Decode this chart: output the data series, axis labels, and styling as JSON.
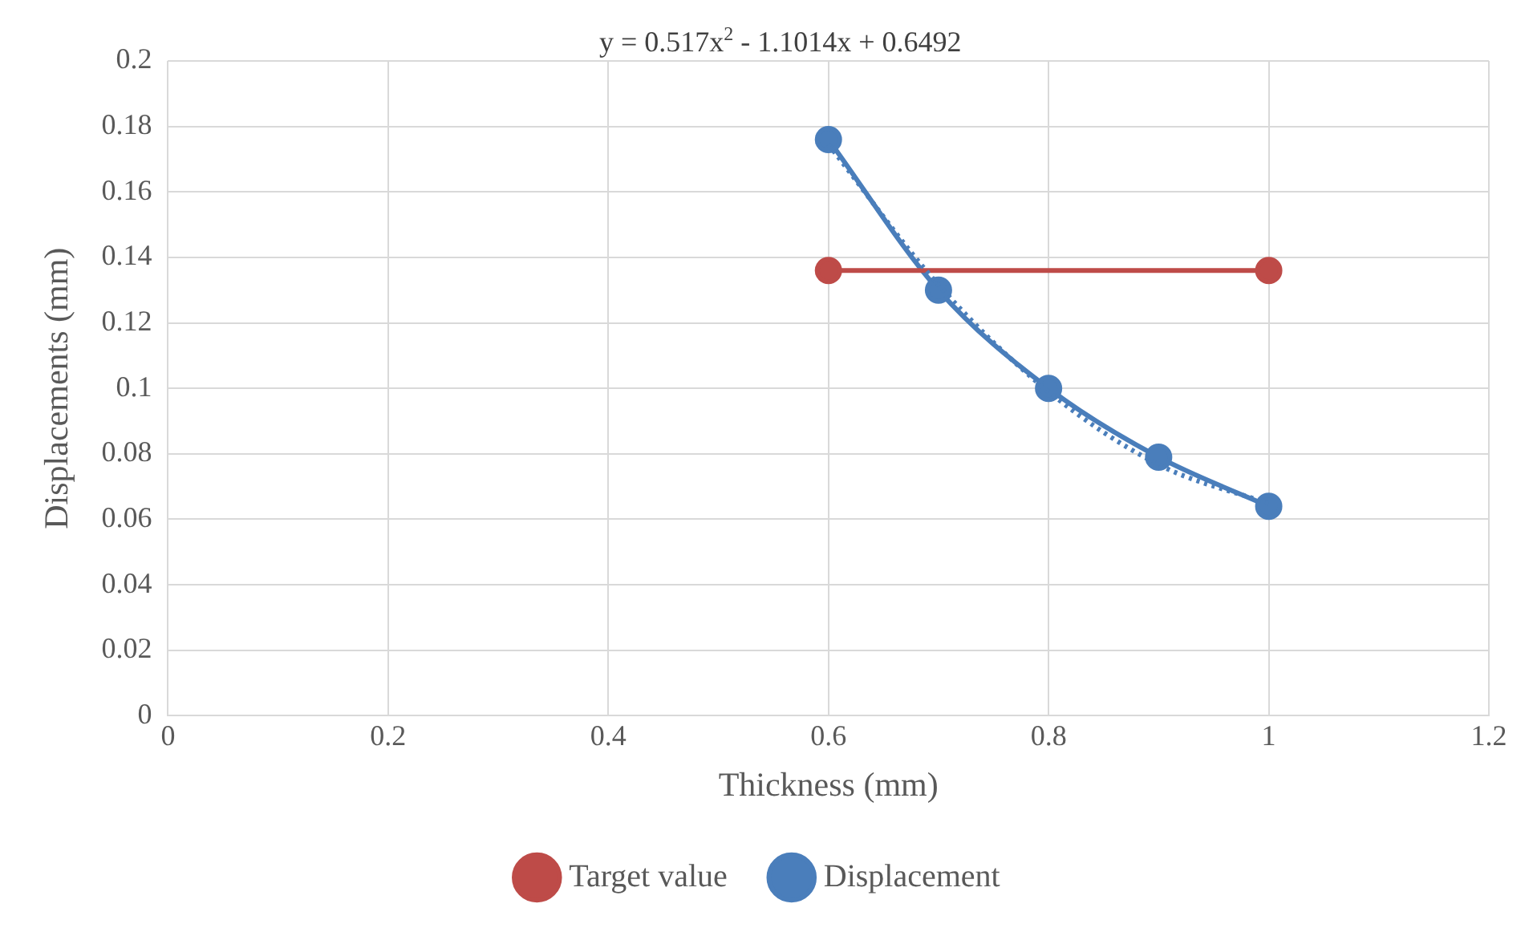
{
  "chart_data": {
    "type": "line",
    "xlabel": "Thickness (mm)",
    "ylabel": "Displacements (mm)",
    "x": [
      0.6,
      0.7,
      0.8,
      0.9,
      1.0
    ],
    "series": [
      {
        "name": "Displacement",
        "color": "#4a7ebb",
        "values": [
          0.176,
          0.13,
          0.1,
          0.079,
          0.064
        ],
        "marker": "circle"
      },
      {
        "name": "Target value",
        "color": "#be4b48",
        "x": [
          0.6,
          1.0
        ],
        "values": [
          0.136,
          0.136
        ],
        "marker": "circle"
      },
      {
        "type": "line",
        "color": "#4a7ebb",
        "x": [
          0.6,
          0.7,
          0.8,
          0.9,
          1.0
        ],
        "values": [
          0.1745,
          0.1316,
          0.099,
          0.0767,
          0.0648
        ],
        "marker": "none",
        "line_style": "dotted"
      }
    ],
    "xlim": [
      0,
      1.2
    ],
    "xticks": [
      0,
      0.2,
      0.4,
      0.6,
      0.8,
      1,
      1.2
    ],
    "ylim": [
      0,
      0.2
    ],
    "yticks": [
      0,
      0.02,
      0.04,
      0.06,
      0.08,
      0.1,
      0.12,
      0.14,
      0.16,
      0.18,
      0.2
    ],
    "annotations": [
      "y = 0.517x$^{2}$ - 1.1014x + 0.6492"
    ],
    "grid": true,
    "legend": "bottom"
  }
}
